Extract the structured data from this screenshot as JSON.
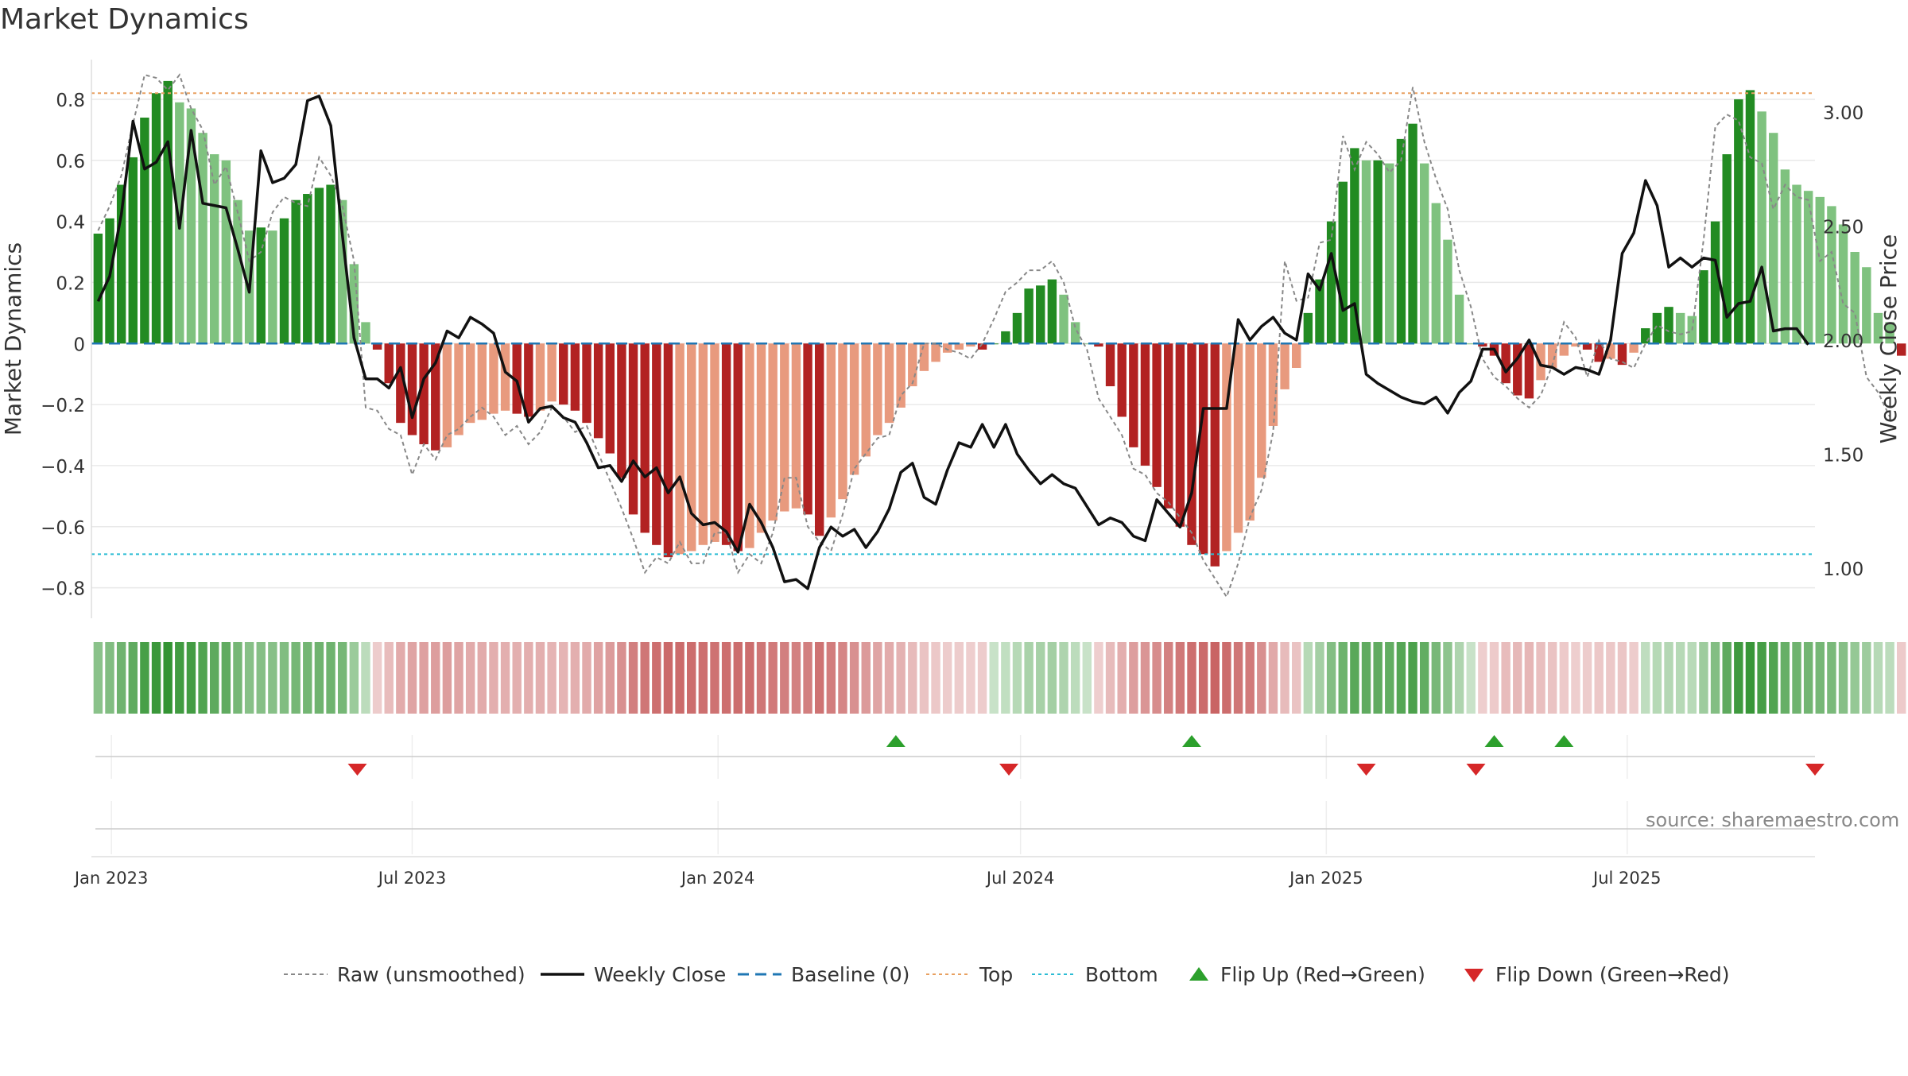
{
  "chart": {
    "title": "Market Dynamics",
    "source": "source: sharemaestro.com"
  },
  "colors": {
    "strong_up": "#228b22",
    "weak_up": "#7fc27f",
    "strong_down": "#b22222",
    "weak_down": "#e89a7e",
    "raw_line": "#888888",
    "close_line": "#111111",
    "baseline": "#1f77b4",
    "top": "#e8a060",
    "bottom": "#2bbcd4",
    "flip_up": "#2ca02c",
    "flip_down": "#d62728"
  },
  "chart_data": {
    "type": "bar",
    "title": "Market Dynamics",
    "ylabel_left": "Market Dynamics",
    "ylabel_right": "Weekly Close Price",
    "ylim_left": [
      -0.9,
      0.93
    ],
    "ylim_right": [
      0.78,
      3.23
    ],
    "left_ticks": [
      0.8,
      0.6,
      0.4,
      0.2,
      0,
      -0.2,
      -0.4,
      -0.6,
      -0.8
    ],
    "left_tick_labels": [
      "0.8",
      "0.6",
      "0.4",
      "0.2",
      "0",
      "−0.2",
      "−0.4",
      "−0.6",
      "−0.8"
    ],
    "right_ticks": [
      3.0,
      2.5,
      2.0,
      1.5,
      1.0
    ],
    "right_tick_labels": [
      "3.00",
      "2.50",
      "2.00",
      "1.50",
      "1.00"
    ],
    "x_tick_dates": [
      "2023-01-01",
      "2023-07-01",
      "2024-01-01",
      "2024-07-01",
      "2025-01-01",
      "2025-07-01"
    ],
    "x_tick_labels": [
      "Jan 2023",
      "Jul 2023",
      "Jan 2024",
      "Jul 2024",
      "Jan 2025",
      "Jul 2025"
    ],
    "x_range": [
      "2022-12-20",
      "2025-10-22"
    ],
    "week_start": "2022-12-24",
    "top_level": 0.82,
    "bottom_level": -0.69,
    "baseline": 0,
    "grid": true,
    "legend_position": "bottom",
    "legend": [
      {
        "label": "Raw (unsmoothed)",
        "style": "dotted-gray"
      },
      {
        "label": "Weekly Close",
        "style": "solid-black"
      },
      {
        "label": "Baseline (0)",
        "style": "dashed-blue"
      },
      {
        "label": "Top",
        "style": "dotted-orange"
      },
      {
        "label": "Bottom",
        "style": "dotted-cyan"
      },
      {
        "label": "Flip Up (Red→Green)",
        "style": "triangle-up-green"
      },
      {
        "label": "Flip Down (Green→Red)",
        "style": "triangle-down-red"
      }
    ],
    "series": [
      {
        "name": "Market Dynamics (smoothed)",
        "kind": "bar",
        "values": [
          0.36,
          0.41,
          0.52,
          0.61,
          0.74,
          0.82,
          0.86,
          0.79,
          0.77,
          0.69,
          0.62,
          0.6,
          0.47,
          0.37,
          0.38,
          0.37,
          0.41,
          0.47,
          0.49,
          0.51,
          0.52,
          0.47,
          0.26,
          0.07,
          -0.02,
          -0.13,
          -0.26,
          -0.3,
          -0.33,
          -0.35,
          -0.34,
          -0.3,
          -0.26,
          -0.25,
          -0.23,
          -0.22,
          -0.23,
          -0.24,
          -0.22,
          -0.19,
          -0.2,
          -0.22,
          -0.26,
          -0.31,
          -0.36,
          -0.44,
          -0.56,
          -0.62,
          -0.66,
          -0.7,
          -0.69,
          -0.68,
          -0.66,
          -0.65,
          -0.66,
          -0.68,
          -0.67,
          -0.62,
          -0.58,
          -0.55,
          -0.54,
          -0.56,
          -0.63,
          -0.57,
          -0.51,
          -0.43,
          -0.37,
          -0.3,
          -0.26,
          -0.21,
          -0.14,
          -0.09,
          -0.06,
          -0.03,
          -0.02,
          -0.01,
          -0.02,
          0.0,
          0.04,
          0.1,
          0.18,
          0.19,
          0.21,
          0.16,
          0.07,
          0.0,
          -0.01,
          -0.14,
          -0.24,
          -0.34,
          -0.4,
          -0.47,
          -0.54,
          -0.6,
          -0.66,
          -0.69,
          -0.73,
          -0.68,
          -0.62,
          -0.58,
          -0.44,
          -0.27,
          -0.15,
          -0.08,
          0.1,
          0.21,
          0.4,
          0.53,
          0.64,
          0.6,
          0.6,
          0.59,
          0.67,
          0.72,
          0.59,
          0.46,
          0.34,
          0.16,
          0.0,
          -0.01,
          -0.04,
          -0.13,
          -0.17,
          -0.18,
          -0.12,
          -0.08,
          -0.04,
          -0.01,
          -0.02,
          -0.06,
          -0.05,
          -0.07,
          -0.03,
          0.05,
          0.1,
          0.12,
          0.1,
          0.09,
          0.24,
          0.4,
          0.62,
          0.8,
          0.83,
          0.76,
          0.69,
          0.57,
          0.52,
          0.5,
          0.48,
          0.45,
          0.39,
          0.3,
          0.25,
          0.1,
          0.07,
          -0.04
        ]
      },
      {
        "name": "Raw (unsmoothed)",
        "kind": "line",
        "values": [
          0.37,
          0.45,
          0.55,
          0.72,
          0.88,
          0.87,
          0.83,
          0.88,
          0.77,
          0.7,
          0.52,
          0.58,
          0.43,
          0.27,
          0.3,
          0.43,
          0.48,
          0.46,
          0.45,
          0.61,
          0.55,
          0.45,
          0.27,
          -0.21,
          -0.22,
          -0.28,
          -0.3,
          -0.43,
          -0.33,
          -0.38,
          -0.3,
          -0.28,
          -0.24,
          -0.21,
          -0.24,
          -0.3,
          -0.27,
          -0.33,
          -0.29,
          -0.21,
          -0.24,
          -0.29,
          -0.27,
          -0.36,
          -0.45,
          -0.54,
          -0.64,
          -0.75,
          -0.7,
          -0.72,
          -0.65,
          -0.72,
          -0.72,
          -0.62,
          -0.62,
          -0.75,
          -0.69,
          -0.72,
          -0.62,
          -0.44,
          -0.44,
          -0.6,
          -0.65,
          -0.68,
          -0.56,
          -0.41,
          -0.36,
          -0.31,
          -0.3,
          -0.17,
          -0.13,
          0.0,
          0.0,
          -0.02,
          -0.03,
          -0.05,
          0.0,
          0.08,
          0.17,
          0.2,
          0.24,
          0.24,
          0.27,
          0.2,
          0.05,
          -0.02,
          -0.18,
          -0.24,
          -0.3,
          -0.41,
          -0.43,
          -0.49,
          -0.52,
          -0.57,
          -0.62,
          -0.71,
          -0.77,
          -0.83,
          -0.72,
          -0.57,
          -0.48,
          -0.29,
          0.27,
          0.14,
          0.15,
          0.33,
          0.34,
          0.68,
          0.57,
          0.66,
          0.62,
          0.56,
          0.6,
          0.84,
          0.66,
          0.54,
          0.44,
          0.24,
          0.12,
          -0.05,
          -0.11,
          -0.14,
          -0.18,
          -0.21,
          -0.17,
          -0.07,
          0.07,
          0.02,
          -0.11,
          0.01,
          -0.05,
          -0.06,
          -0.08,
          0.0,
          0.06,
          0.04,
          0.03,
          0.04,
          0.34,
          0.71,
          0.75,
          0.73,
          0.61,
          0.59,
          0.44,
          0.52,
          0.48,
          0.47,
          0.27,
          0.3,
          0.13,
          0.1,
          -0.11,
          -0.16,
          -0.24
        ]
      },
      {
        "name": "Weekly Close",
        "kind": "line",
        "axis": "right",
        "values": [
          2.17,
          2.28,
          2.55,
          2.96,
          2.75,
          2.78,
          2.87,
          2.49,
          2.92,
          2.6,
          2.59,
          2.58,
          2.4,
          2.21,
          2.83,
          2.69,
          2.71,
          2.77,
          3.05,
          3.07,
          2.94,
          2.46,
          2.01,
          1.83,
          1.83,
          1.79,
          1.88,
          1.66,
          1.83,
          1.9,
          2.04,
          2.01,
          2.1,
          2.07,
          2.03,
          1.86,
          1.82,
          1.64,
          1.7,
          1.71,
          1.66,
          1.64,
          1.55,
          1.44,
          1.45,
          1.38,
          1.47,
          1.4,
          1.44,
          1.33,
          1.4,
          1.24,
          1.19,
          1.2,
          1.16,
          1.07,
          1.28,
          1.2,
          1.09,
          0.94,
          0.95,
          0.91,
          1.09,
          1.18,
          1.14,
          1.17,
          1.09,
          1.16,
          1.26,
          1.42,
          1.46,
          1.31,
          1.28,
          1.43,
          1.55,
          1.53,
          1.63,
          1.53,
          1.63,
          1.5,
          1.43,
          1.37,
          1.41,
          1.37,
          1.35,
          1.27,
          1.19,
          1.22,
          1.2,
          1.14,
          1.12,
          1.3,
          1.24,
          1.18,
          1.33,
          1.7,
          1.7,
          1.7,
          2.09,
          2.0,
          2.06,
          2.1,
          2.03,
          2.0,
          2.29,
          2.22,
          2.38,
          2.13,
          2.16,
          1.85,
          1.81,
          1.78,
          1.75,
          1.73,
          1.72,
          1.75,
          1.68,
          1.77,
          1.82,
          1.96,
          1.96,
          1.86,
          1.92,
          2.0,
          1.89,
          1.88,
          1.85,
          1.88,
          1.87,
          1.85,
          2.0,
          2.38,
          2.47,
          2.7,
          2.59,
          2.32,
          2.36,
          2.32,
          2.36,
          2.35,
          2.1,
          2.16,
          2.17,
          2.32,
          2.04,
          2.05,
          2.05,
          1.98
        ]
      }
    ],
    "flip_up": [
      "2024-04-17",
      "2024-10-12",
      "2025-04-12",
      "2025-05-24"
    ],
    "flip_down": [
      "2023-05-29",
      "2024-06-24",
      "2025-01-25",
      "2025-04-01",
      "2025-10-22"
    ]
  }
}
